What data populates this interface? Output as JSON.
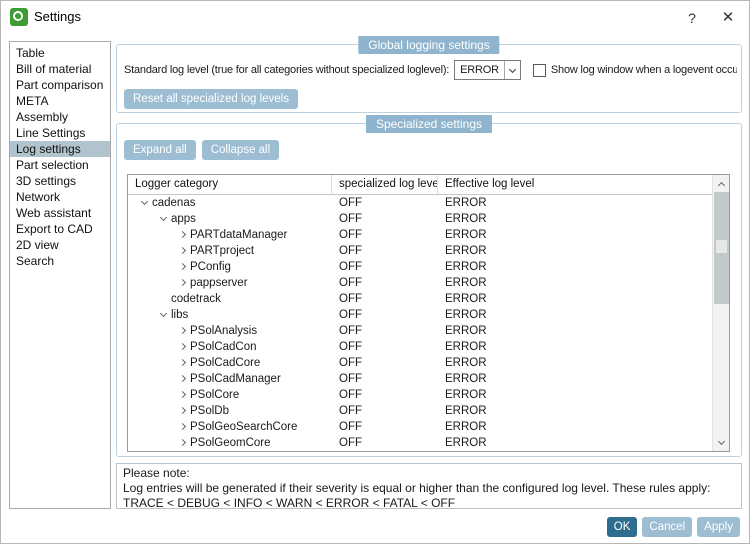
{
  "window": {
    "title": "Settings",
    "help_label": "?",
    "close_label": "✕"
  },
  "sidebar": {
    "items": [
      "Table",
      "Bill of material",
      "Part comparison",
      "META",
      "Assembly",
      "Line Settings",
      "Log settings",
      "Part selection",
      "3D settings",
      "Network",
      "Web assistant",
      "Export to CAD",
      "2D view",
      "Search"
    ],
    "selected_index": 6
  },
  "global": {
    "legend": "Global logging settings",
    "standard_label": "Standard log level (true for all categories without specialized loglevel):",
    "level_value": "ERROR",
    "checkbox_label": "Show log window when a logevent occur",
    "checkbox_checked": false,
    "reset_button": "Reset all specialized log levels"
  },
  "specialized": {
    "legend": "Specialized settings",
    "expand_button": "Expand all",
    "collapse_button": "Collapse all",
    "table": {
      "headers": [
        "Logger category",
        "specialized log level",
        "Effective log level"
      ],
      "rows": [
        {
          "label": "cadenas",
          "level": 0,
          "state": "expanded",
          "specialized": "OFF",
          "effective": "ERROR"
        },
        {
          "label": "apps",
          "level": 1,
          "state": "expanded",
          "specialized": "OFF",
          "effective": "ERROR"
        },
        {
          "label": "PARTdataManager",
          "level": 2,
          "state": "collapsed",
          "specialized": "OFF",
          "effective": "ERROR"
        },
        {
          "label": "PARTproject",
          "level": 2,
          "state": "collapsed",
          "specialized": "OFF",
          "effective": "ERROR"
        },
        {
          "label": "PConfig",
          "level": 2,
          "state": "collapsed",
          "specialized": "OFF",
          "effective": "ERROR"
        },
        {
          "label": "pappserver",
          "level": 2,
          "state": "collapsed",
          "specialized": "OFF",
          "effective": "ERROR"
        },
        {
          "label": "codetrack",
          "level": 1,
          "state": "leaf",
          "specialized": "OFF",
          "effective": "ERROR"
        },
        {
          "label": "libs",
          "level": 1,
          "state": "expanded",
          "specialized": "OFF",
          "effective": "ERROR"
        },
        {
          "label": "PSolAnalysis",
          "level": 2,
          "state": "collapsed",
          "specialized": "OFF",
          "effective": "ERROR"
        },
        {
          "label": "PSolCadCon",
          "level": 2,
          "state": "collapsed",
          "specialized": "OFF",
          "effective": "ERROR"
        },
        {
          "label": "PSolCadCore",
          "level": 2,
          "state": "collapsed",
          "specialized": "OFF",
          "effective": "ERROR"
        },
        {
          "label": "PSolCadManager",
          "level": 2,
          "state": "collapsed",
          "specialized": "OFF",
          "effective": "ERROR"
        },
        {
          "label": "PSolCore",
          "level": 2,
          "state": "collapsed",
          "specialized": "OFF",
          "effective": "ERROR"
        },
        {
          "label": "PSolDb",
          "level": 2,
          "state": "collapsed",
          "specialized": "OFF",
          "effective": "ERROR"
        },
        {
          "label": "PSolGeoSearchCore",
          "level": 2,
          "state": "collapsed",
          "specialized": "OFF",
          "effective": "ERROR"
        },
        {
          "label": "PSolGeomCore",
          "level": 2,
          "state": "collapsed",
          "specialized": "OFF",
          "effective": "ERROR"
        }
      ]
    }
  },
  "note": {
    "lines": [
      "Please note:",
      "Log entries will be generated if their severity is equal or higher than the configured log level. These rules apply:",
      "TRACE < DEBUG < INFO < WARN < ERROR < FATAL < OFF"
    ]
  },
  "footer": {
    "ok": "OK",
    "cancel": "Cancel",
    "apply": "Apply"
  },
  "colors": {
    "accent": "#8fb4cd",
    "button": "#9dbdd3",
    "ok_button": "#2e6d8e",
    "selection": "#b1c4ce",
    "app_green": "#3f9c35"
  }
}
